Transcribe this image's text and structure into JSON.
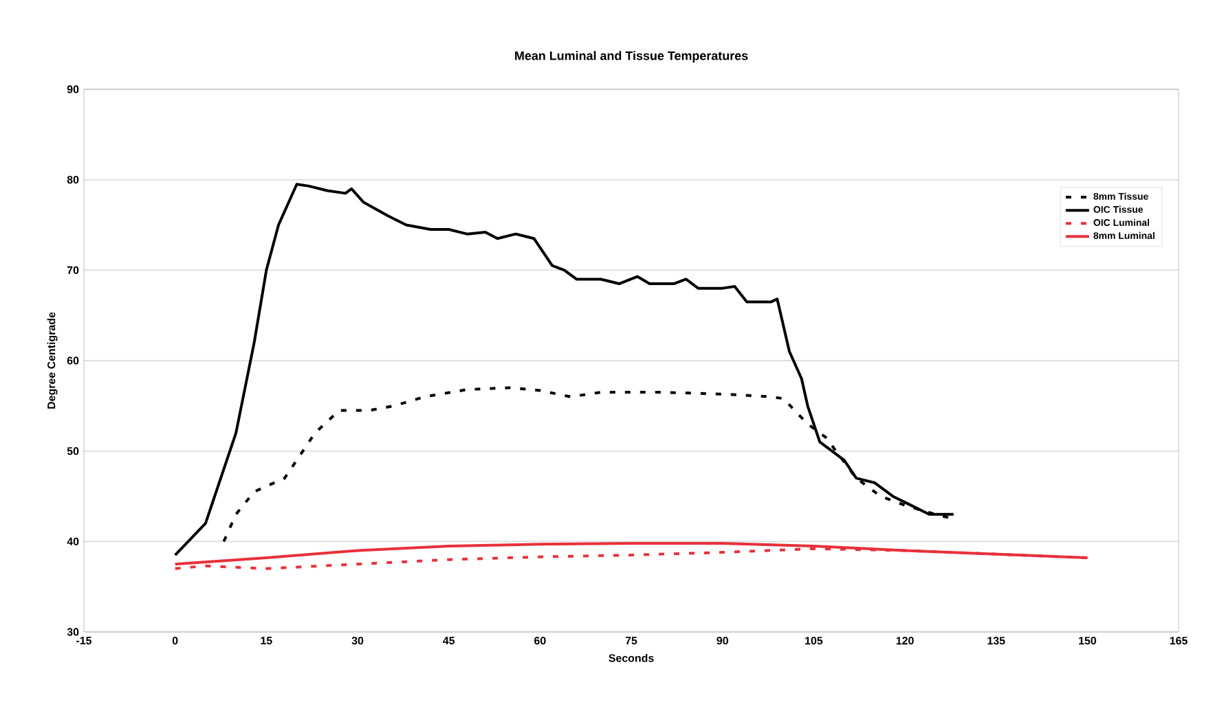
{
  "chart_data": {
    "type": "line",
    "title": "Mean Luminal and Tissue Temperatures",
    "xlabel": "Seconds",
    "ylabel": "Degree Centigrade",
    "xlim": [
      -15,
      165
    ],
    "xticks": [
      -15,
      0,
      15,
      30,
      45,
      60,
      75,
      90,
      105,
      120,
      135,
      150,
      165
    ],
    "ylim": [
      30,
      90
    ],
    "yticks": [
      30,
      40,
      50,
      60,
      70,
      80,
      90
    ],
    "grid": "y",
    "legend": "top right",
    "marker": "none",
    "series": [
      {
        "name": "8mm Tissue",
        "color": "#000000",
        "line_style": "dashed",
        "x": [
          8,
          10,
          13,
          18,
          20,
          23,
          27,
          32,
          36,
          41,
          48,
          55,
          60,
          65,
          70,
          80,
          90,
          98,
          100,
          104,
          107,
          112,
          116,
          120,
          125,
          128
        ],
        "values": [
          40,
          43,
          45.5,
          47,
          49,
          52,
          54.5,
          54.5,
          55,
          56,
          56.8,
          57,
          56.7,
          56,
          56.5,
          56.5,
          56.3,
          56,
          55.8,
          53,
          51.5,
          47,
          45,
          44,
          43,
          42.5
        ]
      },
      {
        "name": "OIC Tissue",
        "color": "#000000",
        "line_style": "solid",
        "x": [
          0,
          5,
          10,
          13,
          15,
          17,
          20,
          22,
          25,
          28,
          29,
          31,
          35,
          38,
          42,
          45,
          48,
          51,
          53,
          56,
          59,
          60,
          62,
          64,
          66,
          70,
          73,
          76,
          78,
          82,
          84,
          86,
          90,
          92,
          94,
          98,
          99,
          101,
          103,
          104,
          106,
          108,
          110,
          112,
          115,
          118,
          121,
          124,
          128
        ],
        "values": [
          38.5,
          42,
          52,
          62,
          70,
          75,
          79.5,
          79.3,
          78.8,
          78.5,
          79,
          77.5,
          76,
          75,
          74.5,
          74.5,
          74,
          74.2,
          73.5,
          74,
          73.5,
          72.5,
          70.5,
          70,
          69,
          69,
          68.5,
          69.3,
          68.5,
          68.5,
          69,
          68,
          68,
          68.2,
          66.5,
          66.5,
          66.8,
          61,
          58,
          55,
          51,
          50,
          49,
          47,
          46.5,
          45,
          44,
          43,
          43
        ]
      },
      {
        "name": "OIC Luminal",
        "color": "#e8303a",
        "line_style": "dashed",
        "x": [
          0,
          5,
          15,
          30,
          45,
          60,
          75,
          90,
          105,
          120,
          135,
          150
        ],
        "values": [
          37,
          37.3,
          37,
          37.5,
          38,
          38.3,
          38.5,
          38.8,
          39.2,
          39,
          38.6,
          38.2
        ]
      },
      {
        "name": "8mm Luminal",
        "color": "#e8303a",
        "line_style": "solid",
        "x": [
          0,
          15,
          30,
          45,
          60,
          75,
          90,
          105,
          120,
          135,
          150
        ],
        "values": [
          37.5,
          38.2,
          39,
          39.5,
          39.7,
          39.8,
          39.8,
          39.5,
          39,
          38.6,
          38.2
        ]
      }
    ]
  }
}
